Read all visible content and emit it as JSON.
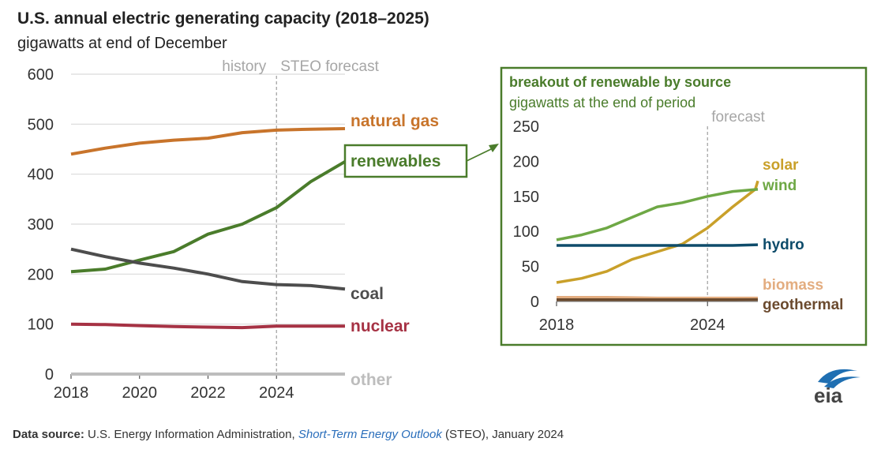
{
  "title": "U.S. annual electric generating capacity (2018–2025)",
  "subtitle": "gigawatts at end of December",
  "footer": {
    "label": "Data source:",
    "source": "U.S. Energy Information Administration,",
    "publication": "Short-Term Energy Outlook",
    "suffix": "(STEO), January 2024"
  },
  "logo_text": "eia",
  "colors": {
    "natural_gas": "#C8742B",
    "renewables": "#4A7C2B",
    "coal": "#4D4D4D",
    "nuclear": "#A63244",
    "other": "#BDBDBD",
    "solar": "#C9A02A",
    "wind": "#6EA845",
    "hydro": "#0E4C6B",
    "biomass": "#E3AD80",
    "geothermal": "#6B4A2E",
    "box_border": "#4A7C2B",
    "grid": "#D9D9D9",
    "divider": "#A6A6A6",
    "eia_blue": "#1F6FB2"
  },
  "chart_data": [
    {
      "type": "line",
      "title": "U.S. annual electric generating capacity (2018–2025)",
      "ylabel": "gigawatts at end of December",
      "xlim": [
        2018,
        2026
      ],
      "ylim": [
        0,
        600
      ],
      "yticks": [
        0,
        100,
        200,
        300,
        400,
        500,
        600
      ],
      "xticks": [
        2018,
        2020,
        2022,
        2024
      ],
      "grid": true,
      "forecast_start": 2024,
      "annotations": {
        "history": "history",
        "forecast": "STEO forecast"
      },
      "series": [
        {
          "name": "natural gas",
          "key": "natural_gas",
          "x": [
            2018,
            2019,
            2020,
            2021,
            2022,
            2023,
            2024,
            2025,
            2026
          ],
          "values": [
            440,
            452,
            462,
            468,
            472,
            483,
            488,
            490,
            491
          ]
        },
        {
          "name": "renewables",
          "key": "renewables",
          "x": [
            2018,
            2019,
            2020,
            2021,
            2022,
            2023,
            2024,
            2025,
            2026
          ],
          "values": [
            205,
            210,
            228,
            245,
            280,
            300,
            333,
            385,
            425
          ]
        },
        {
          "name": "coal",
          "key": "coal",
          "x": [
            2018,
            2019,
            2020,
            2021,
            2022,
            2023,
            2024,
            2025,
            2026
          ],
          "values": [
            250,
            235,
            222,
            212,
            200,
            185,
            179,
            177,
            170
          ]
        },
        {
          "name": "nuclear",
          "key": "nuclear",
          "x": [
            2018,
            2019,
            2020,
            2021,
            2022,
            2023,
            2024,
            2025,
            2026
          ],
          "values": [
            100,
            99,
            97,
            95,
            94,
            93,
            96,
            96,
            96
          ]
        },
        {
          "name": "other",
          "key": "other",
          "x": [
            2018,
            2019,
            2020,
            2021,
            2022,
            2023,
            2024,
            2025,
            2026
          ],
          "values": [
            0,
            0,
            0,
            0,
            0,
            0,
            0,
            0,
            0
          ]
        }
      ]
    },
    {
      "type": "line",
      "title": "breakout of renewable by source",
      "ylabel": "gigawatts at the end of period",
      "xlim": [
        2018,
        2026
      ],
      "ylim": [
        0,
        250
      ],
      "yticks": [
        0,
        50,
        100,
        150,
        200,
        250
      ],
      "xticks": [
        2018,
        2024
      ],
      "grid": false,
      "forecast_start": 2024,
      "annotations": {
        "forecast": "forecast"
      },
      "series": [
        {
          "name": "solar",
          "key": "solar",
          "x": [
            2018,
            2019,
            2020,
            2021,
            2022,
            2023,
            2024,
            2025,
            2025.9,
            2026
          ],
          "values": [
            27,
            33,
            43,
            60,
            71,
            82,
            105,
            135,
            160,
            172
          ]
        },
        {
          "name": "wind",
          "key": "wind",
          "x": [
            2018,
            2019,
            2020,
            2021,
            2022,
            2023,
            2024,
            2025,
            2026
          ],
          "values": [
            88,
            95,
            105,
            120,
            135,
            141,
            150,
            157,
            160
          ]
        },
        {
          "name": "hydro",
          "key": "hydro",
          "x": [
            2018,
            2019,
            2020,
            2021,
            2022,
            2023,
            2024,
            2025,
            2026
          ],
          "values": [
            80,
            80,
            80,
            80,
            80,
            80,
            80,
            80,
            81
          ]
        },
        {
          "name": "biomass",
          "key": "biomass",
          "x": [
            2018,
            2019,
            2020,
            2021,
            2022,
            2023,
            2024,
            2025,
            2026
          ],
          "values": [
            6,
            6,
            6,
            5.5,
            5,
            5,
            5,
            5,
            5
          ]
        },
        {
          "name": "geothermal",
          "key": "geothermal",
          "x": [
            2018,
            2019,
            2020,
            2021,
            2022,
            2023,
            2024,
            2025,
            2026
          ],
          "values": [
            2.5,
            2.5,
            2.5,
            2.5,
            2.5,
            2.5,
            2.5,
            2.6,
            2.7
          ]
        }
      ]
    }
  ]
}
